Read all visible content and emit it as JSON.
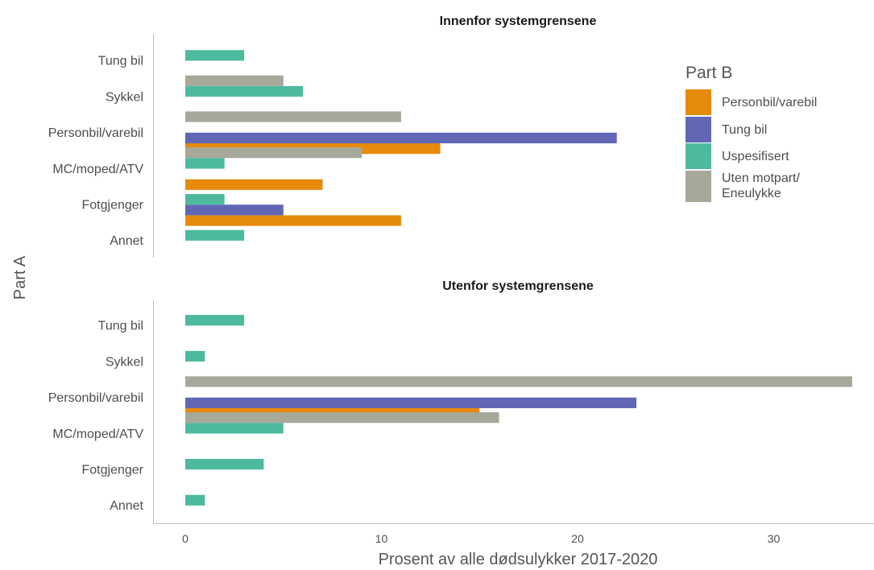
{
  "chart_data": {
    "type": "bar",
    "orientation": "horizontal",
    "xlabel": "Prosent av alle dødsulykker 2017-2020",
    "ylabel": "Part A",
    "xlim": [
      0,
      35
    ],
    "xticks": [
      0,
      10,
      20,
      30
    ],
    "grid": false,
    "legend": {
      "title": "Part B",
      "placement": "top-right",
      "entries": [
        {
          "key": "personbil",
          "lines": [
            "Personbil/varebil"
          ],
          "color": "#E68A0C"
        },
        {
          "key": "tungbil",
          "lines": [
            "Tung bil"
          ],
          "color": "#6167B4"
        },
        {
          "key": "uspes",
          "lines": [
            "Uspesifisert"
          ],
          "color": "#4DBA9E"
        },
        {
          "key": "uten",
          "lines": [
            "Uten motpart/",
            "Eneulykke"
          ],
          "color": "#A6A899"
        }
      ]
    },
    "categories": [
      "Tung bil",
      "Sykkel",
      "Personbil/varebil",
      "MC/moped/ATV",
      "Fotgjenger",
      "Annet"
    ],
    "panels": [
      {
        "title": "Innenfor systemgrensene",
        "series": [
          {
            "key": "personbil",
            "name": "Personbil/varebil",
            "values": [
              0,
              0,
              13,
              7,
              11,
              0
            ]
          },
          {
            "key": "tungbil",
            "name": "Tung bil",
            "values": [
              0,
              0,
              22,
              0,
              5,
              0
            ]
          },
          {
            "key": "uspes",
            "name": "Uspesifisert",
            "values": [
              3,
              6,
              0,
              2,
              2,
              3
            ]
          },
          {
            "key": "uten",
            "name": "Uten motpart/Eneulykke",
            "values": [
              0,
              5,
              11,
              9,
              0,
              0
            ]
          }
        ]
      },
      {
        "title": "Utenfor systemgrensene",
        "series": [
          {
            "key": "personbil",
            "name": "Personbil/varebil",
            "values": [
              0,
              0,
              15,
              0,
              0,
              0
            ]
          },
          {
            "key": "tungbil",
            "name": "Tung bil",
            "values": [
              0,
              0,
              23,
              0,
              0,
              0
            ]
          },
          {
            "key": "uspes",
            "name": "Uspesifisert",
            "values": [
              3,
              1,
              0,
              5,
              4,
              1
            ]
          },
          {
            "key": "uten",
            "name": "Uten motpart/Eneulykke",
            "values": [
              0,
              0,
              34,
              16,
              0,
              0
            ]
          }
        ]
      }
    ]
  }
}
